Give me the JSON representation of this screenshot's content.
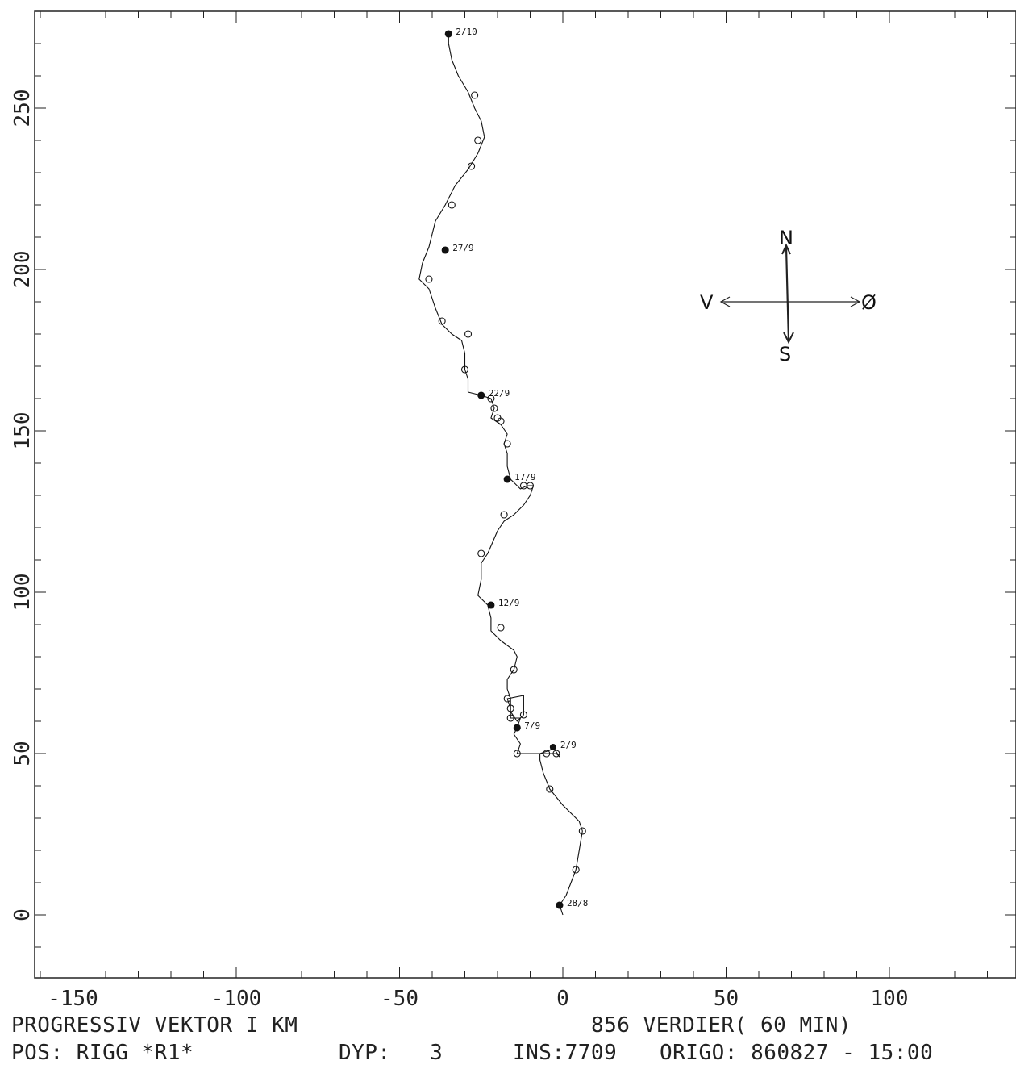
{
  "chart_data": {
    "type": "line",
    "title": "",
    "xlabel": "",
    "ylabel": "",
    "xlim": [
      -160,
      140
    ],
    "ylim": [
      -20,
      280
    ],
    "x_ticks": [
      -150,
      -100,
      -50,
      0,
      50,
      100
    ],
    "y_ticks": [
      0,
      50,
      100,
      150,
      200,
      250
    ],
    "x_tick_labels": [
      "-150",
      "-100",
      "-50",
      "0",
      "50",
      "100"
    ],
    "y_tick_labels": [
      "0",
      "50",
      "100",
      "150",
      "200",
      "250"
    ],
    "grid": false,
    "series": [
      {
        "values_xy": [
          [
            0,
            0
          ],
          [
            -1,
            3
          ],
          [
            1,
            6
          ],
          [
            4,
            14
          ],
          [
            5,
            20
          ],
          [
            6,
            26
          ],
          [
            5,
            29
          ],
          [
            0,
            34
          ],
          [
            -4,
            39
          ],
          [
            -6,
            44
          ],
          [
            -7,
            48
          ],
          [
            -7,
            50
          ],
          [
            -4,
            51
          ],
          [
            -3,
            52
          ],
          [
            -1,
            49
          ],
          [
            -2,
            50
          ],
          [
            -5,
            50
          ],
          [
            -8,
            50
          ],
          [
            -14,
            50
          ],
          [
            -13,
            53
          ],
          [
            -15,
            56
          ],
          [
            -14,
            58
          ],
          [
            -13,
            61
          ],
          [
            -16,
            61
          ],
          [
            -16,
            64
          ],
          [
            -17,
            67
          ],
          [
            -12,
            68
          ],
          [
            -12,
            65
          ],
          [
            -12,
            62
          ],
          [
            -14,
            60
          ],
          [
            -16,
            63
          ],
          [
            -16,
            67
          ],
          [
            -17,
            70
          ],
          [
            -17,
            73
          ],
          [
            -15,
            76
          ],
          [
            -14,
            80
          ],
          [
            -15,
            82
          ],
          [
            -19,
            85
          ],
          [
            -22,
            88
          ],
          [
            -22,
            92
          ],
          [
            -23,
            96
          ],
          [
            -26,
            99
          ],
          [
            -25,
            104
          ],
          [
            -25,
            109
          ],
          [
            -23,
            112
          ],
          [
            -20,
            119
          ],
          [
            -18,
            122
          ],
          [
            -15,
            124
          ],
          [
            -12,
            127
          ],
          [
            -10,
            130
          ],
          [
            -9,
            133
          ],
          [
            -11,
            133
          ],
          [
            -13,
            132
          ],
          [
            -16,
            135
          ],
          [
            -17,
            139
          ],
          [
            -17,
            143
          ],
          [
            -18,
            146
          ],
          [
            -17,
            149
          ],
          [
            -19,
            152
          ],
          [
            -22,
            154
          ],
          [
            -21,
            157
          ],
          [
            -22,
            160
          ],
          [
            -25,
            161
          ],
          [
            -29,
            162
          ],
          [
            -29,
            166
          ],
          [
            -30,
            169
          ],
          [
            -30,
            174
          ],
          [
            -31,
            178
          ],
          [
            -34,
            180
          ],
          [
            -37,
            183
          ],
          [
            -39,
            188
          ],
          [
            -41,
            194
          ],
          [
            -44,
            197
          ],
          [
            -43,
            202
          ],
          [
            -41,
            207
          ],
          [
            -40,
            211
          ],
          [
            -39,
            215
          ],
          [
            -36,
            220
          ],
          [
            -33,
            226
          ],
          [
            -29,
            231
          ],
          [
            -26,
            236
          ],
          [
            -24,
            241
          ],
          [
            -25,
            246
          ],
          [
            -27,
            250
          ],
          [
            -29,
            255
          ],
          [
            -32,
            260
          ],
          [
            -34,
            265
          ],
          [
            -35,
            270
          ],
          [
            -35,
            273
          ]
        ]
      }
    ],
    "markers_xy": [
      [
        -1,
        3
      ],
      [
        4,
        14
      ],
      [
        6,
        26
      ],
      [
        -4,
        39
      ],
      [
        -5,
        50
      ],
      [
        -2,
        50
      ],
      [
        -14,
        50
      ],
      [
        -14,
        58
      ],
      [
        -16,
        61
      ],
      [
        -16,
        64
      ],
      [
        -17,
        67
      ],
      [
        -12,
        62
      ],
      [
        -15,
        76
      ],
      [
        -19,
        89
      ],
      [
        -22,
        96
      ],
      [
        -25,
        112
      ],
      [
        -18,
        124
      ],
      [
        -12,
        133
      ],
      [
        -10,
        133
      ],
      [
        -17,
        135
      ],
      [
        -17,
        146
      ],
      [
        -19,
        153
      ],
      [
        -20,
        154
      ],
      [
        -21,
        157
      ],
      [
        -22,
        160
      ],
      [
        -25,
        161
      ],
      [
        -30,
        169
      ],
      [
        -29,
        180
      ],
      [
        -37,
        184
      ],
      [
        -41,
        197
      ],
      [
        -36,
        206
      ],
      [
        -34,
        220
      ],
      [
        -28,
        232
      ],
      [
        -26,
        240
      ],
      [
        -27,
        254
      ],
      [
        -35,
        273
      ]
    ],
    "annotations": [
      {
        "text": "2/10",
        "x": -35,
        "y": 273
      },
      {
        "text": "27/9",
        "x": -36,
        "y": 206
      },
      {
        "text": "22/9",
        "x": -25,
        "y": 161
      },
      {
        "text": "17/9",
        "x": -17,
        "y": 135
      },
      {
        "text": "12/9",
        "x": -22,
        "y": 96
      },
      {
        "text": "7/9",
        "x": -14,
        "y": 58
      },
      {
        "text": "2/9",
        "x": -3,
        "y": 52
      },
      {
        "text": "28/8",
        "x": -1,
        "y": 3
      }
    ],
    "compass": {
      "north": "N",
      "south": "S",
      "west": "V",
      "east": "Ø"
    }
  },
  "caption": {
    "line1_left": "PROGRESSIV VEKTOR I KM",
    "line1_right": "856 VERDIER( 60 MIN)",
    "line2_pos": "POS: RIGG *R1*",
    "line2_depth": "DYP:   3",
    "line2_ins": "INS:7709",
    "line2_origin": "ORIGO: 860827 - 15:00"
  }
}
